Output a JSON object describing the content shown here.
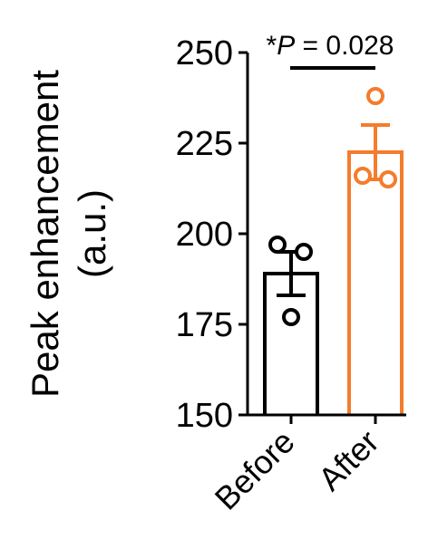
{
  "chart_data": {
    "type": "bar",
    "title": "",
    "ylabel_lines": [
      "Peak enhancement",
      "(a.u.)"
    ],
    "xlabel": "",
    "categories": [
      "Before",
      "After"
    ],
    "ylim": [
      150,
      250
    ],
    "yticks": [
      150,
      175,
      200,
      225,
      250
    ],
    "error_bars": "mean ± SEM",
    "series": [
      {
        "values": [
          189,
          222.5
        ],
        "error": [
          6,
          7.5
        ],
        "points": [
          [
            197,
            195,
            177
          ],
          [
            238,
            216,
            215
          ]
        ],
        "colors": [
          "#000000",
          "#f47c2c"
        ]
      }
    ],
    "annotation": {
      "star": "*",
      "p_symbol": "P",
      "p_text": " = 0.028",
      "between": [
        "Before",
        "After"
      ]
    }
  }
}
